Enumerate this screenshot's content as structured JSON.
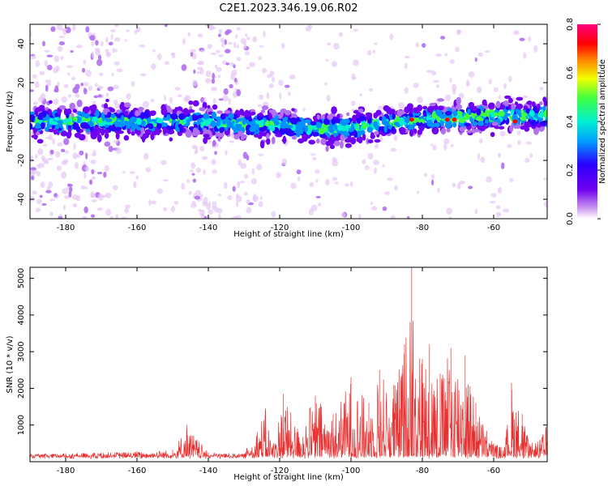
{
  "figure_title": "C2E1.2023.346.19.06.R02",
  "colors": {
    "snr_line": "#e83030",
    "axis": "#000000",
    "spectrogram_colormap": [
      "#ffffff",
      "#e6c8f5",
      "#b070f0",
      "#7000f0",
      "#2a00ff",
      "#0090ff",
      "#00f0d0",
      "#40ff40",
      "#f0ff00",
      "#ff8000",
      "#ff0000",
      "#ff0080"
    ]
  },
  "chart_data": [
    {
      "type": "heatmap",
      "title": "C2E1.2023.346.19.06.R02",
      "xlabel": "Height of straight line (km)",
      "ylabel": "Frequency (Hz)",
      "xlim": [
        -190,
        -45
      ],
      "ylim": [
        -50,
        50
      ],
      "x_ticks": [
        -180,
        -160,
        -140,
        -120,
        -100,
        -80,
        -60
      ],
      "y_ticks": [
        -40,
        -20,
        0,
        20,
        40
      ],
      "colorbar": {
        "label": "Normalized spectral amplitude",
        "range": [
          0.0,
          0.8
        ],
        "ticks": [
          "0.0",
          "0.2",
          "0.4",
          "0.6",
          "0.8"
        ]
      },
      "description_values": {
        "band_center_hz": [
          {
            "x": -190,
            "y": 0
          },
          {
            "x": -150,
            "y": 0
          },
          {
            "x": -120,
            "y": -2
          },
          {
            "x": -110,
            "y": -4
          },
          {
            "x": -100,
            "y": -3
          },
          {
            "x": -80,
            "y": 1
          },
          {
            "x": -60,
            "y": 3
          },
          {
            "x": -45,
            "y": 3
          }
        ],
        "band_half_width_hz": 5,
        "noise_columns_km": [
          [
            -190,
            -165
          ],
          [
            -145,
            -128
          ]
        ]
      }
    },
    {
      "type": "line",
      "xlabel": "Height of straight line (km)",
      "ylabel": "SNR (10 * v/v)",
      "xlim": [
        -190,
        -45
      ],
      "ylim": [
        0,
        5300
      ],
      "x_ticks": [
        -180,
        -160,
        -140,
        -120,
        -100,
        -80,
        -60
      ],
      "y_ticks": [
        1000,
        2000,
        3000,
        4000,
        5000
      ],
      "series": [
        {
          "values": [
            {
              "x": -190,
              "y": 200
            },
            {
              "x": -180,
              "y": 230
            },
            {
              "x": -170,
              "y": 250
            },
            {
              "x": -160,
              "y": 280
            },
            {
              "x": -150,
              "y": 330
            },
            {
              "x": -146,
              "y": 1000
            },
            {
              "x": -140,
              "y": 250
            },
            {
              "x": -130,
              "y": 220
            },
            {
              "x": -124,
              "y": 1450
            },
            {
              "x": -122,
              "y": 450
            },
            {
              "x": -119,
              "y": 1850
            },
            {
              "x": -115,
              "y": 900
            },
            {
              "x": -110,
              "y": 1800
            },
            {
              "x": -105,
              "y": 1300
            },
            {
              "x": -100,
              "y": 2300
            },
            {
              "x": -95,
              "y": 1600
            },
            {
              "x": -92,
              "y": 2500
            },
            {
              "x": -88,
              "y": 2100
            },
            {
              "x": -85,
              "y": 3200
            },
            {
              "x": -83,
              "y": 5300
            },
            {
              "x": -80,
              "y": 2800
            },
            {
              "x": -78,
              "y": 3200
            },
            {
              "x": -75,
              "y": 2400
            },
            {
              "x": -72,
              "y": 3100
            },
            {
              "x": -68,
              "y": 2900
            },
            {
              "x": -65,
              "y": 1600
            },
            {
              "x": -60,
              "y": 500
            },
            {
              "x": -57,
              "y": 400
            },
            {
              "x": -55,
              "y": 2150
            },
            {
              "x": -52,
              "y": 1300
            },
            {
              "x": -50,
              "y": 500
            },
            {
              "x": -47,
              "y": 600
            },
            {
              "x": -45,
              "y": 1050
            }
          ]
        }
      ]
    }
  ]
}
